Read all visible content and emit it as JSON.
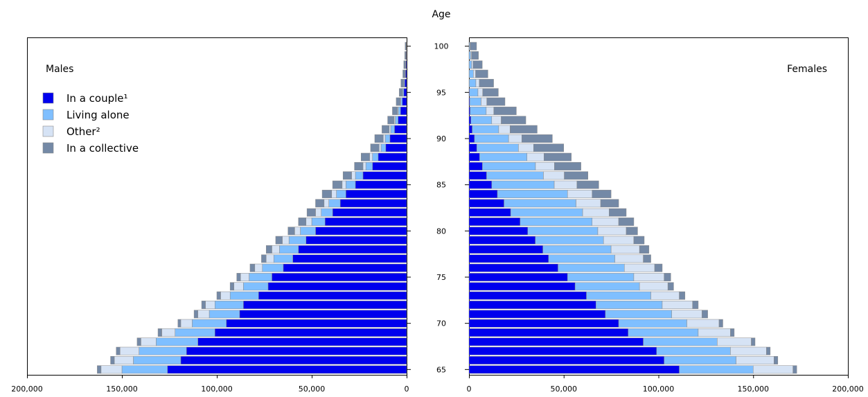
{
  "chart_data": {
    "type": "bar",
    "orientation": "horizontal",
    "layout": "population-pyramid",
    "stacked": true,
    "center_axis_title": "Age",
    "ages": [
      65,
      66,
      67,
      68,
      69,
      70,
      71,
      72,
      73,
      74,
      75,
      76,
      77,
      78,
      79,
      80,
      81,
      82,
      83,
      84,
      85,
      86,
      87,
      88,
      89,
      90,
      91,
      92,
      93,
      94,
      95,
      96,
      97,
      98,
      99,
      100
    ],
    "age_tick_labels": [
      "65",
      "70",
      "75",
      "80",
      "85",
      "90",
      "95",
      "100"
    ],
    "xlim": [
      0,
      200000
    ],
    "x_tick_labels": [
      "0",
      "50,000",
      "100,000",
      "150,000",
      "200,000"
    ],
    "grid": false,
    "legend_position": "top-left",
    "panels": [
      {
        "title": "Males",
        "direction": "left",
        "series": [
          {
            "name": "In a couple¹",
            "color": "#0000ee",
            "values": [
              126000,
              119000,
              116000,
              110000,
              101000,
              95000,
              88000,
              86000,
              78000,
              73000,
              71000,
              65000,
              60000,
              57000,
              53000,
              48000,
              43000,
              39000,
              35000,
              32000,
              27000,
              23000,
              18000,
              15000,
              11000,
              8800,
              6400,
              4500,
              3200,
              2300,
              1500,
              1000,
              600,
              400,
              200,
              100
            ]
          },
          {
            "name": "Living alone",
            "color": "#7fbfff",
            "values": [
              24000,
              25000,
              25000,
              22000,
              21000,
              18000,
              16000,
              15000,
              15000,
              13000,
              12000,
              11000,
              10000,
              10000,
              9000,
              8000,
              7000,
              6000,
              6000,
              5000,
              5000,
              4000,
              3500,
              3000,
              2500,
              2500,
              2000,
              1500,
              1200,
              800,
              600,
              400,
              300,
              200,
              100,
              100
            ]
          },
          {
            "name": "Other²",
            "color": "#d6e3f5",
            "values": [
              11000,
              10000,
              10000,
              8000,
              7000,
              6000,
              6000,
              5000,
              5000,
              5000,
              4500,
              4000,
              4000,
              4000,
              3500,
              3000,
              3000,
              3000,
              2500,
              2500,
              2000,
              2000,
              1500,
              1500,
              1000,
              1000,
              800,
              600,
              400,
              300,
              200,
              200,
              100,
              100,
              100,
              100
            ]
          },
          {
            "name": "In a collective",
            "color": "#7489a6",
            "values": [
              2000,
              2000,
              2000,
              2000,
              2000,
              1500,
              2000,
              2000,
              2000,
              2000,
              2000,
              2500,
              2500,
              3000,
              3500,
              3500,
              4000,
              4500,
              4500,
              5000,
              5000,
              4500,
              4500,
              4500,
              4500,
              4500,
              3800,
              3400,
              2700,
              2100,
              1600,
              1400,
              1000,
              800,
              600,
              500
            ]
          }
        ]
      },
      {
        "title": "Females",
        "direction": "right",
        "series": [
          {
            "name": "In a couple¹",
            "color": "#0000ee",
            "values": [
              111000,
              103000,
              99000,
              92000,
              84000,
              79000,
              72000,
              67000,
              62000,
              56000,
              52000,
              47000,
              42000,
              39000,
              35000,
              31000,
              27000,
              22000,
              18500,
              15000,
              12000,
              9300,
              7100,
              5600,
              4100,
              2900,
              1700,
              1000,
              600,
              400,
              250,
              150,
              100,
              50,
              50,
              20
            ]
          },
          {
            "name": "Living alone",
            "color": "#7fbfff",
            "values": [
              39000,
              38000,
              39000,
              39000,
              37000,
              36000,
              35000,
              35000,
              34000,
              34000,
              35000,
              35000,
              35000,
              36000,
              36000,
              37000,
              38000,
              38000,
              38000,
              37000,
              33000,
              30000,
              28000,
              25000,
              22000,
              18000,
              14000,
              11000,
              8500,
              6000,
              4500,
              3500,
              2200,
              1300,
              800,
              400
            ]
          },
          {
            "name": "Other²",
            "color": "#d6e3f5",
            "values": [
              21000,
              20000,
              19000,
              18000,
              17000,
              17000,
              16000,
              16000,
              15000,
              15000,
              16000,
              16000,
              15000,
              15000,
              16000,
              15000,
              14000,
              14000,
              13000,
              13000,
              12000,
              11000,
              10000,
              9000,
              8000,
              7000,
              6000,
              5000,
              4000,
              3000,
              2500,
              1800,
              1200,
              800,
              500,
              300
            ]
          },
          {
            "name": "In a collective",
            "color": "#7489a6",
            "values": [
              2000,
              2000,
              2000,
              2000,
              2000,
              2000,
              3000,
              3000,
              3000,
              3000,
              3500,
              4000,
              4000,
              5000,
              5500,
              6000,
              8000,
              9000,
              9500,
              10000,
              11500,
              12500,
              14000,
              14400,
              15900,
              16100,
              14300,
              13000,
              11900,
              9600,
              8250,
              7550,
              6500,
              4850,
              3650,
              3280
            ]
          }
        ]
      }
    ]
  }
}
